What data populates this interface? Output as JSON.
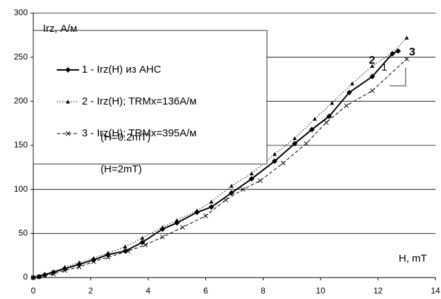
{
  "chart_data": {
    "type": "line",
    "y_label": "Irz, А/м",
    "x_label": "H, mT",
    "xlim": [
      0,
      14
    ],
    "xticks": [
      0,
      2,
      4,
      6,
      8,
      10,
      12,
      14
    ],
    "ylim": [
      0,
      300
    ],
    "yticks": [
      0,
      50,
      100,
      150,
      200,
      250,
      300
    ],
    "grid": true,
    "legend": "upper left",
    "annotations": [
      "(H=0.2mT)",
      "(H=2mT)",
      "2",
      "1",
      "3"
    ],
    "series": [
      {
        "name": "1 - Irz(H) из АНС",
        "color": "#000000",
        "line_style": "solid",
        "marker": "diamond",
        "x": [
          0,
          0.2,
          0.4,
          0.7,
          1.1,
          1.6,
          2.1,
          2.6,
          3.2,
          3.8,
          4.5,
          5.0,
          5.7,
          6.2,
          6.9,
          7.6,
          8.4,
          9.1,
          9.7,
          10.3,
          11.0,
          11.8,
          12.5,
          12.7
        ],
        "values": [
          0,
          1,
          3,
          6,
          10,
          15,
          20,
          26,
          30,
          40,
          55,
          62,
          74,
          80,
          96,
          112,
          132,
          152,
          168,
          183,
          210,
          228,
          254,
          257
        ]
      },
      {
        "name": "2 - Irz(H); TRMx=136A/м",
        "color": "#000000",
        "line_style": "dotted",
        "marker": "triangle",
        "x": [
          0,
          0.2,
          0.4,
          0.7,
          1.1,
          1.6,
          2.1,
          2.6,
          3.2,
          3.8,
          4.5,
          5.0,
          5.7,
          6.2,
          6.9,
          7.6,
          8.4,
          9.1,
          9.8,
          10.4,
          11.1,
          11.8,
          12.5,
          13.0
        ],
        "values": [
          0,
          1,
          4,
          7,
          12,
          17,
          22,
          28,
          35,
          45,
          57,
          65,
          76,
          86,
          104,
          118,
          140,
          158,
          180,
          198,
          220,
          240,
          255,
          272
        ]
      },
      {
        "name": "3 - Irz(H); TRMx=395A/м",
        "color": "#000000",
        "line_style": "dashed",
        "marker": "x",
        "x": [
          0,
          0.2,
          0.4,
          0.7,
          1.1,
          1.6,
          2.1,
          2.6,
          3.3,
          3.9,
          4.5,
          5.2,
          6.0,
          6.7,
          7.3,
          7.9,
          8.7,
          9.5,
          10.2,
          10.9,
          11.8,
          13.0
        ],
        "values": [
          0,
          1,
          2,
          4,
          8,
          12,
          18,
          23,
          30,
          37,
          46,
          57,
          70,
          88,
          100,
          110,
          130,
          152,
          176,
          195,
          212,
          248
        ]
      }
    ]
  }
}
